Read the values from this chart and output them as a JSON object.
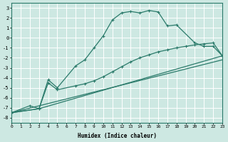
{
  "xlabel": "Humidex (Indice chaleur)",
  "xlim": [
    0,
    23
  ],
  "ylim": [
    -8.5,
    3.5
  ],
  "yticks": [
    3,
    2,
    1,
    0,
    -1,
    -2,
    -3,
    -4,
    -5,
    -6,
    -7,
    -8
  ],
  "bg_color": "#cde8e2",
  "grid_color": "#ffffff",
  "line_color": "#2a7a6a",
  "line1_x": [
    0,
    2,
    3,
    4,
    5,
    7,
    8,
    9,
    10,
    11,
    12,
    13,
    14,
    15,
    16,
    17,
    18,
    20,
    21,
    22,
    23
  ],
  "line1_y": [
    -7.5,
    -6.8,
    -7.1,
    -4.2,
    -5.0,
    -2.8,
    -2.2,
    -1.0,
    0.2,
    1.8,
    2.5,
    2.65,
    2.5,
    2.75,
    2.6,
    1.2,
    1.3,
    -0.5,
    -0.85,
    -0.85,
    -1.8
  ],
  "line2_x": [
    0,
    3,
    4,
    5,
    7,
    8,
    9,
    10,
    11,
    12,
    13,
    14,
    15,
    16,
    17,
    18,
    19,
    20,
    21,
    22,
    23
  ],
  "line2_y": [
    -7.5,
    -7.1,
    -4.5,
    -5.2,
    -4.8,
    -4.6,
    -4.3,
    -3.9,
    -3.4,
    -2.9,
    -2.4,
    -2.0,
    -1.7,
    -1.4,
    -1.2,
    -1.0,
    -0.85,
    -0.7,
    -0.6,
    -0.5,
    -1.8
  ],
  "line3_x": [
    0,
    3,
    23
  ],
  "line3_y": [
    -7.5,
    -7.1,
    -1.8
  ],
  "line4_x": [
    0,
    3,
    23
  ],
  "line4_y": [
    -7.5,
    -7.1,
    -1.8
  ]
}
